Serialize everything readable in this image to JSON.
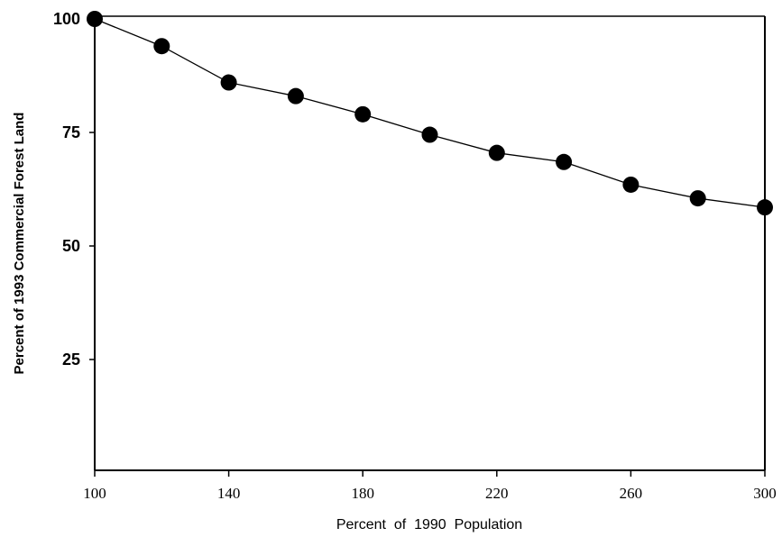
{
  "chart_data": {
    "type": "line",
    "title": "",
    "xlabel": "Percent  of  1990  Population",
    "ylabel": "Percent of 1993 Commercial Forest Land",
    "xlim": [
      100,
      300
    ],
    "ylim": [
      0,
      100
    ],
    "x_ticks": [
      "100",
      "140",
      "180",
      "220",
      "260",
      "300"
    ],
    "y_ticks": [
      "100",
      "75",
      "50",
      "25"
    ],
    "grid": false,
    "series": [
      {
        "x": [
          100,
          120,
          140,
          160,
          180,
          200,
          220,
          240,
          260,
          280,
          300
        ],
        "y": [
          100,
          94,
          86,
          83,
          79,
          74.5,
          70.5,
          68.5,
          63.5,
          60.5,
          58.5
        ]
      }
    ]
  }
}
